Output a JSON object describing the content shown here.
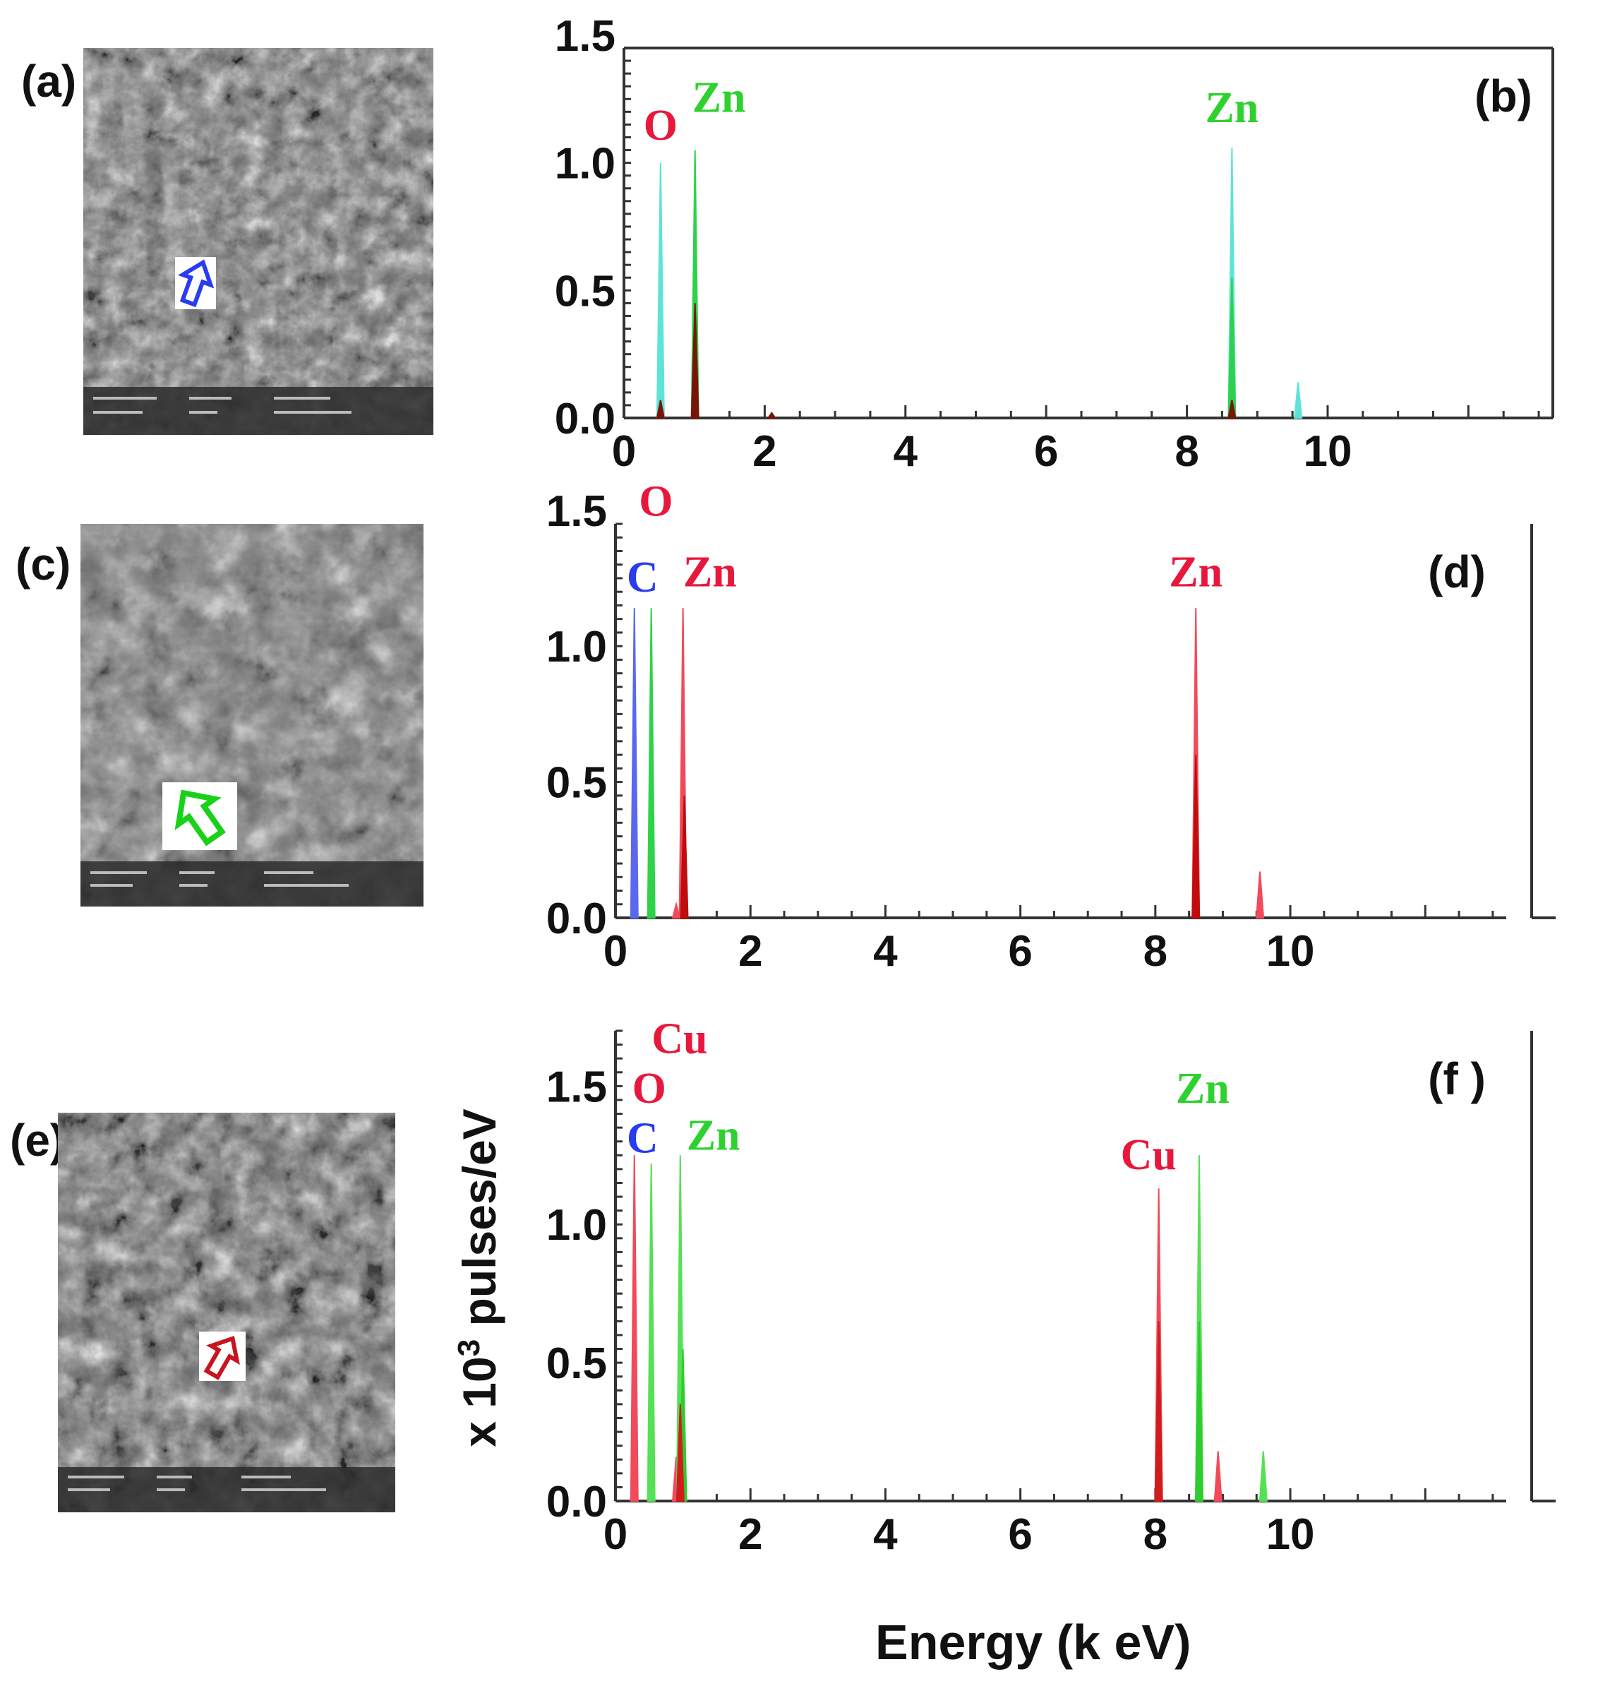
{
  "panels": {
    "a": "(a)",
    "c": "(c)",
    "e": "(e)"
  },
  "arrow_colors": {
    "a": "#2a3cf0",
    "c": "#19d119",
    "e": "#c8141e"
  },
  "y_axis_title": "x 10",
  "y_axis_title_sup": "3",
  "y_axis_title_tail": " pulses/eV",
  "x_axis_title": "Energy (k eV)",
  "chart_data": [
    {
      "panel": "(b)",
      "type": "line",
      "xticks": [
        0,
        2,
        4,
        6,
        8,
        10
      ],
      "yticks": [
        "0.0",
        "0.5",
        "1.0",
        "1.5"
      ],
      "xlim": [
        0,
        13.2
      ],
      "ylim": [
        0,
        1.45
      ],
      "series": [
        {
          "color": "#5ee3d8",
          "peaks": [
            [
              0.52,
              1.0
            ],
            [
              8.64,
              1.06
            ],
            [
              9.58,
              0.14
            ]
          ]
        },
        {
          "color": "#2ed24a",
          "peaks": [
            [
              1.01,
              1.05
            ],
            [
              8.64,
              0.55
            ]
          ]
        },
        {
          "color": "#7a1408",
          "peaks": [
            [
              0.52,
              0.07
            ],
            [
              1.01,
              0.45
            ],
            [
              2.1,
              0.02
            ],
            [
              8.64,
              0.07
            ]
          ]
        }
      ],
      "labels": [
        {
          "text": "O",
          "color": "#e8173c",
          "x": 0.52,
          "y": 1.09
        },
        {
          "text": "Zn",
          "color": "#2ed22e",
          "x": 1.35,
          "y": 1.2
        },
        {
          "text": "Zn",
          "color": "#2ed22e",
          "x": 8.64,
          "y": 1.16
        }
      ]
    },
    {
      "panel": "(d)",
      "type": "line",
      "xticks": [
        0,
        2,
        4,
        6,
        8,
        10
      ],
      "yticks": [
        "0.0",
        "0.5",
        "1.0",
        "1.5"
      ],
      "xlim": [
        0,
        13.2
      ],
      "ylim": [
        0,
        1.45
      ],
      "series": [
        {
          "color": "#5a68f0",
          "peaks": [
            [
              0.28,
              1.14
            ]
          ]
        },
        {
          "color": "#2ed24a",
          "peaks": [
            [
              0.53,
              1.14
            ]
          ]
        },
        {
          "color": "#f24a5a",
          "peaks": [
            [
              1.0,
              1.14
            ],
            [
              8.6,
              1.14
            ],
            [
              9.55,
              0.17
            ],
            [
              0.9,
              0.05
            ]
          ]
        },
        {
          "color": "#c00c0c",
          "peaks": [
            [
              1.02,
              0.45
            ],
            [
              8.6,
              0.6
            ],
            [
              8.6,
              0.06
            ]
          ]
        }
      ],
      "labels": [
        {
          "text": "O",
          "color": "#e8173c",
          "x": 0.6,
          "y": 1.48
        },
        {
          "text": "C",
          "color": "#2a3cf0",
          "x": 0.4,
          "y": 1.2
        },
        {
          "text": "Zn",
          "color": "#e8173c",
          "x": 1.4,
          "y": 1.22
        },
        {
          "text": "Zn",
          "color": "#e8173c",
          "x": 8.6,
          "y": 1.22
        }
      ]
    },
    {
      "panel": "(f )",
      "type": "line",
      "xticks": [
        0,
        2,
        4,
        6,
        8,
        10
      ],
      "yticks": [
        "0.0",
        "0.5",
        "1.0",
        "1.5"
      ],
      "xlim": [
        0,
        13.2
      ],
      "ylim": [
        0,
        1.7
      ],
      "series": [
        {
          "color": "#f24a5a",
          "peaks": [
            [
              0.28,
              1.25
            ],
            [
              8.05,
              1.13
            ],
            [
              8.93,
              0.18
            ],
            [
              0.9,
              0.16
            ]
          ]
        },
        {
          "color": "#55e055",
          "peaks": [
            [
              0.53,
              1.22
            ],
            [
              0.96,
              1.25
            ],
            [
              8.65,
              1.25
            ],
            [
              9.6,
              0.18
            ]
          ]
        },
        {
          "color": "#2ecc2e",
          "peaks": [
            [
              1.0,
              0.55
            ],
            [
              8.65,
              0.65
            ]
          ]
        },
        {
          "color": "#d01c1c",
          "peaks": [
            [
              0.96,
              0.35
            ],
            [
              8.05,
              0.65
            ]
          ]
        }
      ],
      "labels": [
        {
          "text": "Cu",
          "color": "#e8173c",
          "x": 0.95,
          "y": 1.62
        },
        {
          "text": "O",
          "color": "#e8173c",
          "x": 0.5,
          "y": 1.44
        },
        {
          "text": "C",
          "color": "#2a3cf0",
          "x": 0.4,
          "y": 1.26
        },
        {
          "text": "Zn",
          "color": "#2ed22e",
          "x": 1.45,
          "y": 1.27
        },
        {
          "text": "Zn",
          "color": "#2ed22e",
          "x": 8.7,
          "y": 1.44
        },
        {
          "text": "Cu",
          "color": "#e8173c",
          "x": 7.9,
          "y": 1.2
        }
      ]
    }
  ]
}
